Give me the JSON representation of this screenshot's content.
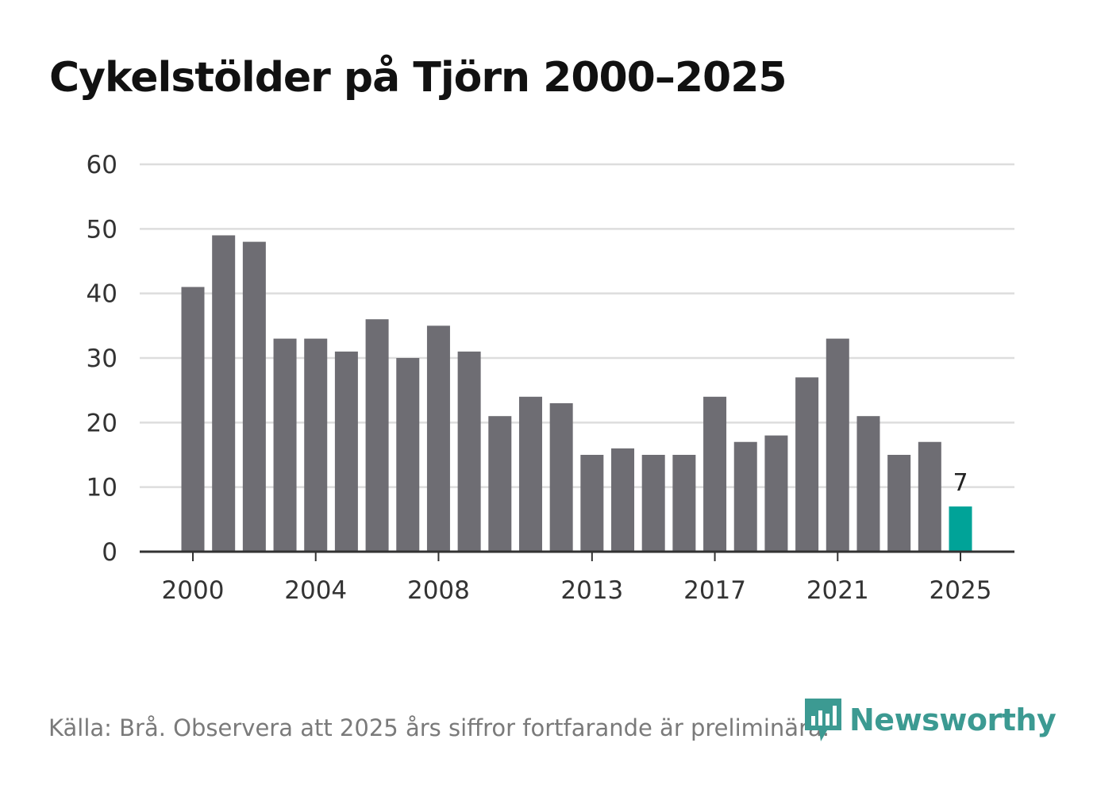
{
  "title": "Cykelstölder på Tjörn 2000–2025",
  "source": "Källa: Brå. Observera att 2025 års siffror fortfarande är preliminära.",
  "brand": {
    "name": "Newsworthy",
    "icon": "newsworthy-logo-icon",
    "color": "#3c9a92"
  },
  "colors": {
    "bar": "#6e6d73",
    "highlight": "#00a398",
    "grid": "#dddddd",
    "axis": "#333333"
  },
  "chart_data": {
    "type": "bar",
    "title": "Cykelstölder på Tjörn 2000–2025",
    "xlabel": "",
    "ylabel": "",
    "categories": [
      "2000",
      "2001",
      "2002",
      "2003",
      "2004",
      "2005",
      "2006",
      "2007",
      "2008",
      "2009",
      "2010",
      "2011",
      "2012",
      "2013",
      "2014",
      "2015",
      "2016",
      "2017",
      "2018",
      "2019",
      "2020",
      "2021",
      "2022",
      "2023",
      "2024",
      "2025"
    ],
    "values": [
      41,
      49,
      48,
      33,
      33,
      31,
      36,
      30,
      35,
      31,
      21,
      24,
      23,
      15,
      16,
      15,
      15,
      24,
      17,
      18,
      27,
      33,
      21,
      15,
      17,
      7
    ],
    "highlight": "2025",
    "highlight_label": "7",
    "ylim": [
      0,
      60
    ],
    "yticks": [
      0,
      10,
      20,
      30,
      40,
      50,
      60
    ],
    "ytick_labels": [
      "0",
      "10",
      "20",
      "30",
      "40",
      "50",
      "60"
    ],
    "xticks": [
      "2000",
      "2004",
      "2008",
      "2013",
      "2017",
      "2021",
      "2025"
    ],
    "grid": true
  }
}
